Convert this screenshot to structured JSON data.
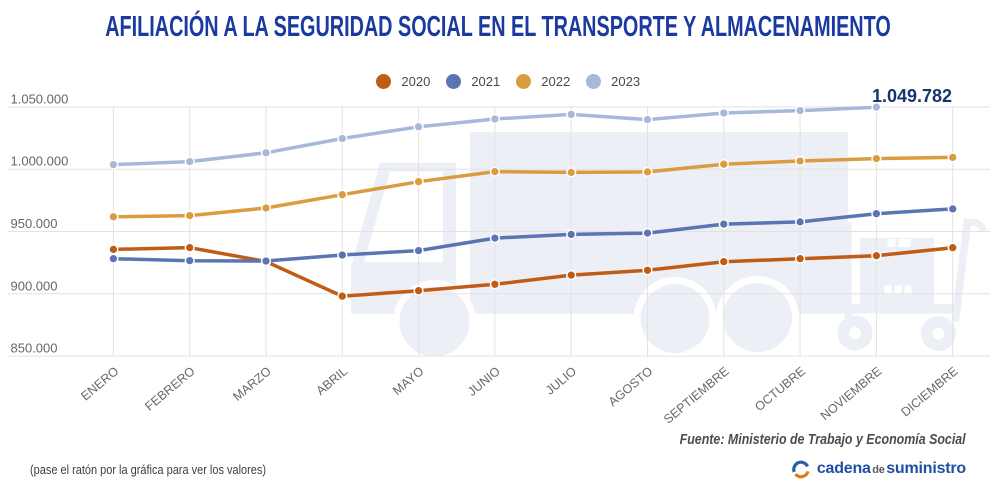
{
  "title": {
    "text": "AFILIACIÓN A LA SEGURIDAD SOCIAL EN EL TRANSPORTE Y ALMACENAMIENTO",
    "color": "#1b3aa0"
  },
  "legend": {
    "items": [
      {
        "label": "2020",
        "color": "#c05c16"
      },
      {
        "label": "2021",
        "color": "#5b74b2"
      },
      {
        "label": "2022",
        "color": "#db9c3f"
      },
      {
        "label": "2023",
        "color": "#a7b8dc"
      }
    ]
  },
  "chart_data": {
    "type": "line",
    "title": "AFILIACIÓN A LA SEGURIDAD SOCIAL EN EL TRANSPORTE Y ALMACENAMIENTO",
    "categories": [
      "ENERO",
      "FEBRERO",
      "MARZO",
      "ABRIL",
      "MAYO",
      "JUNIO",
      "JULIO",
      "AGOSTO",
      "SEPTIEMBRE",
      "OCTUBRE",
      "NOVIEMBRE",
      "DICIEMBRE"
    ],
    "series": [
      {
        "name": "2020",
        "color": "#c05c16",
        "values": [
          935600,
          937100,
          925900,
          898100,
          902500,
          907600,
          915000,
          918900,
          925800,
          928200,
          930600,
          937000
        ]
      },
      {
        "name": "2021",
        "color": "#5b74b2",
        "values": [
          928200,
          926600,
          926300,
          931100,
          934700,
          944700,
          947700,
          948700,
          955900,
          957700,
          964300,
          968100
        ]
      },
      {
        "name": "2022",
        "color": "#db9c3f",
        "values": [
          961800,
          962800,
          968900,
          979500,
          990000,
          998100,
          997400,
          997800,
          1004000,
          1006600,
          1008500,
          1009500
        ]
      },
      {
        "name": "2023",
        "color": "#a7b8dc",
        "values": [
          1003700,
          1006100,
          1013200,
          1024600,
          1034000,
          1040300,
          1044000,
          1039800,
          1045100,
          1047000,
          1049782
        ]
      }
    ],
    "ylim": [
      850000,
      1050000
    ],
    "y_ticks": [
      "1.050.000",
      "1.000.000",
      "950.000",
      "900.000",
      "850.000"
    ],
    "grid": true,
    "legend_position": "top",
    "annotation": {
      "text": "1.049.782",
      "series": "2023",
      "point": "NOVIEMBRE",
      "color": "#17356d"
    }
  },
  "footer": {
    "source": "Fuente: Ministerio de Trabajo y Economía Social",
    "hint": "(pase el ratón por la gráfica para ver los valores)"
  },
  "logo": {
    "word1": "cadena",
    "word2": "de",
    "word3": "suministro",
    "color": "#1f4fa3",
    "icon_blue": "#2b5fa7",
    "icon_orange": "#e8761f"
  }
}
